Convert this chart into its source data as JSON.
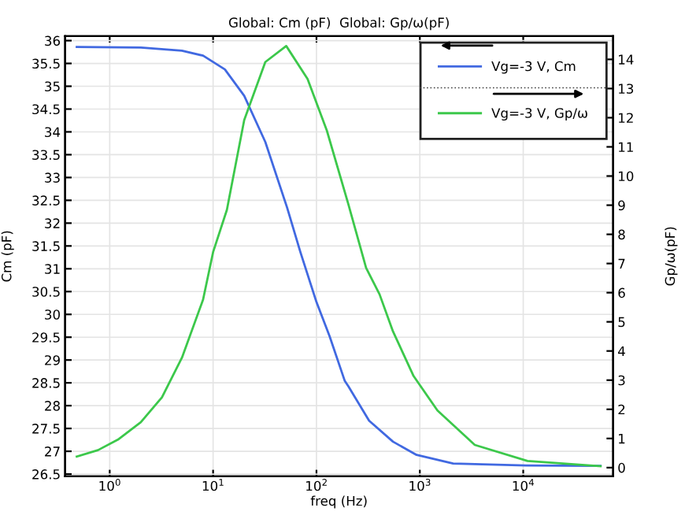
{
  "chart_data": {
    "type": "line",
    "title": "Global: Cm (pF)  Global: Gp/ω(pF)",
    "xlabel": "freq (Hz)",
    "ylabel": "Cm (pF)",
    "y2label": "Gp/ω(pF)",
    "log": "x",
    "grid": true,
    "legend": "top right",
    "marker": "none",
    "line_style": "solid",
    "xlim": [
      0.37,
      74000
    ],
    "xticks": [
      {
        "value": 1,
        "label": "10$^{0}$"
      },
      {
        "value": 10,
        "label": "10$^{1}$"
      },
      {
        "value": 100,
        "label": "10$^{2}$"
      },
      {
        "value": 1000,
        "label": "10$^{3}$"
      },
      {
        "value": 10000,
        "label": "10$^{4}$"
      }
    ],
    "ylim": [
      26.45,
      36.1
    ],
    "yticks": [
      26.5,
      27,
      27.5,
      28,
      28.5,
      29,
      29.5,
      30,
      30.5,
      31,
      31.5,
      32,
      32.5,
      33,
      33.5,
      34,
      34.5,
      35,
      35.5,
      36
    ],
    "y2lim": [
      -0.3,
      14.8
    ],
    "y2ticks": [
      0,
      1,
      2,
      3,
      4,
      5,
      6,
      7,
      8,
      9,
      10,
      11,
      12,
      13,
      14
    ],
    "series": [
      {
        "name": "Vg=-3 V, Cm",
        "color": "#4169e1",
        "x": [
          0.48,
          2,
          5,
          8,
          13,
          20,
          32,
          52,
          70,
          100,
          134,
          188,
          204,
          323,
          550,
          930,
          2100,
          10700,
          56000
        ],
        "values": [
          35.86,
          35.85,
          35.78,
          35.67,
          35.37,
          34.79,
          33.78,
          32.34,
          31.36,
          30.27,
          29.52,
          28.54,
          28.42,
          27.67,
          27.21,
          26.92,
          26.73,
          26.69,
          26.68
        ]
      },
      {
        "name": "Vg=-3 V, Gp/ω",
        "color": "#3cc84b",
        "axis": "y2",
        "x": [
          0.48,
          0.77,
          1.2,
          2,
          3.2,
          5,
          8,
          10,
          13.6,
          20,
          32,
          51,
          82,
          126,
          204,
          302,
          408,
          550,
          870,
          1480,
          3400,
          11000,
          56000
        ],
        "values": [
          0.38,
          0.6,
          0.96,
          1.56,
          2.41,
          3.77,
          5.76,
          7.39,
          8.84,
          11.92,
          13.91,
          14.46,
          13.33,
          11.56,
          9.02,
          6.85,
          5.94,
          4.67,
          3.14,
          1.96,
          0.78,
          0.23,
          0.05
        ]
      }
    ]
  }
}
